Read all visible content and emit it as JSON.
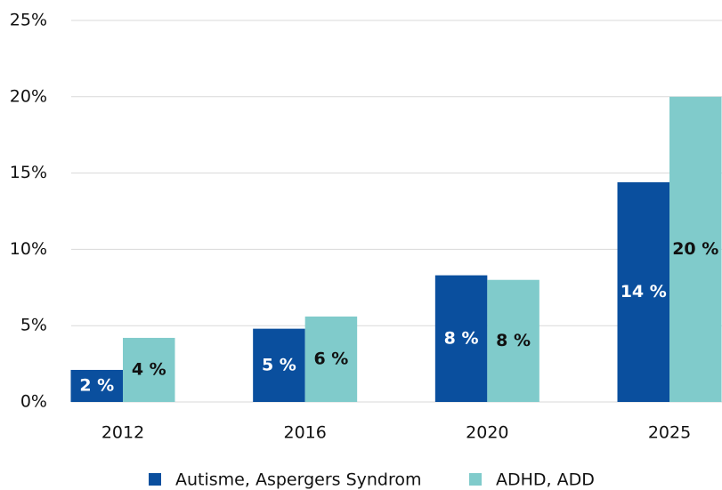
{
  "chart_data": {
    "type": "bar",
    "categories": [
      "2012",
      "2016",
      "2020",
      "2025"
    ],
    "series": [
      {
        "name": "Autisme, Aspergers Syndrom",
        "color": "#0a4f9e",
        "values": [
          2.1,
          4.8,
          8.3,
          14.4
        ],
        "value_labels": [
          "2 %",
          "5 %",
          "8 %",
          "14 %"
        ]
      },
      {
        "name": "ADHD, ADD",
        "color": "#80cbcb",
        "values": [
          4.2,
          5.6,
          8.0,
          20.0
        ],
        "value_labels": [
          "4 %",
          "6 %",
          "8 %",
          "20 %"
        ]
      }
    ],
    "ylim": [
      0,
      25
    ],
    "yticks": [
      {
        "value": 0,
        "label": "0%"
      },
      {
        "value": 5,
        "label": "5%"
      },
      {
        "value": 10,
        "label": "10%"
      },
      {
        "value": 15,
        "label": "15%"
      },
      {
        "value": 20,
        "label": "20%"
      },
      {
        "value": 25,
        "label": "25%"
      }
    ],
    "grid": true,
    "legend": "bottom"
  }
}
